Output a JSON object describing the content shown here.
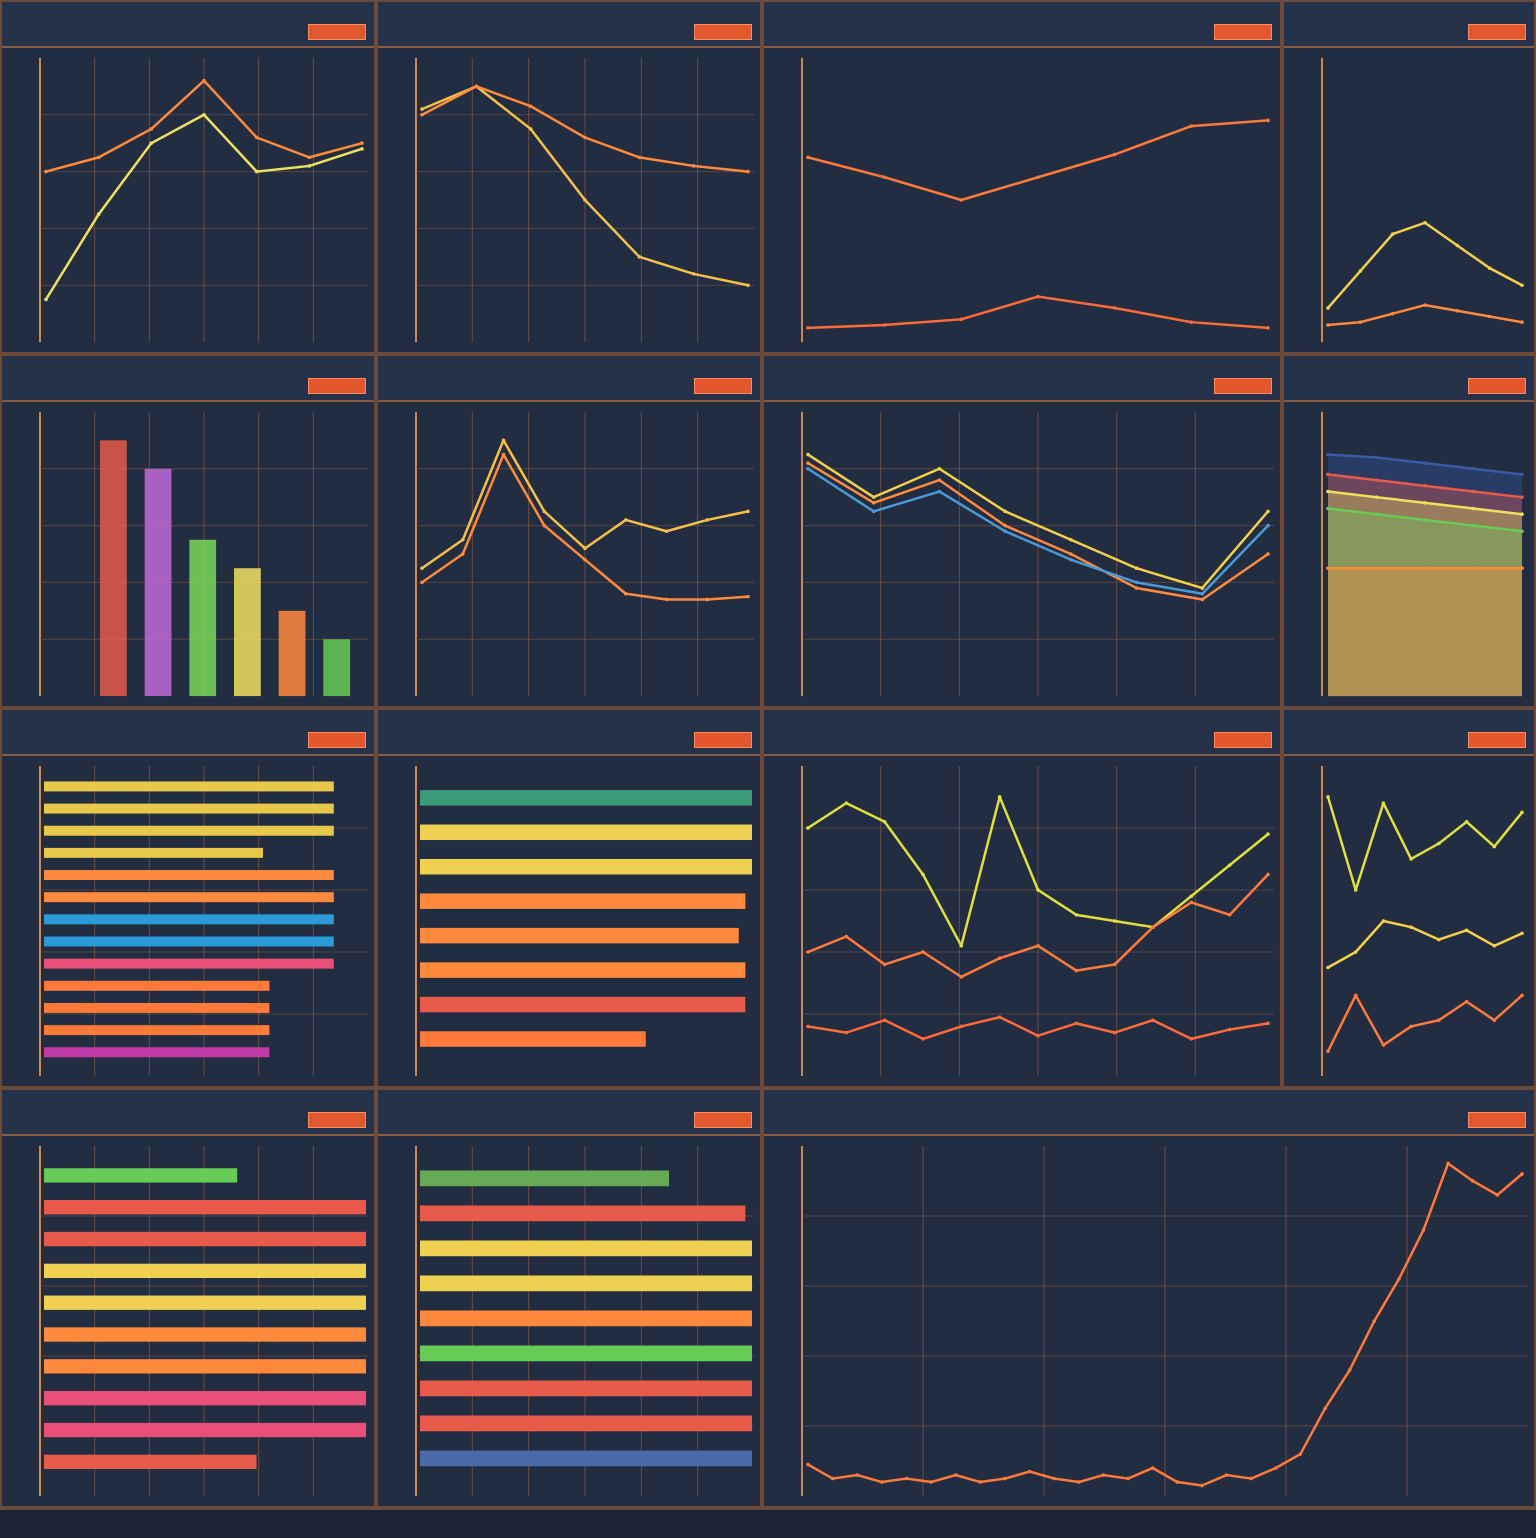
{
  "dashboard": {
    "background": "#1f2a3d",
    "panels": [
      {
        "id": "p1",
        "title": "",
        "subtitle": "",
        "button": "",
        "corner": "",
        "chart": {
          "type": "line",
          "grid": true,
          "x": [
            0,
            1,
            2,
            3,
            4,
            5,
            6
          ],
          "ylim": [
            0,
            10
          ],
          "series": [
            {
              "color": "#f0e060",
              "values": [
                1.5,
                4.5,
                7,
                8,
                6,
                6.2,
                6.8
              ]
            },
            {
              "color": "#ff8a3c",
              "values": [
                6,
                6.5,
                7.5,
                9.2,
                7.2,
                6.5,
                7
              ]
            }
          ]
        }
      },
      {
        "id": "p2",
        "title": "",
        "subtitle": "",
        "button": "",
        "corner": "",
        "chart": {
          "type": "line",
          "grid": true,
          "x": [
            0,
            1,
            2,
            3,
            4,
            5,
            6
          ],
          "ylim": [
            0,
            10
          ],
          "series": [
            {
              "color": "#f5c04a",
              "values": [
                8.2,
                9,
                7.5,
                5,
                3,
                2.4,
                2
              ]
            },
            {
              "color": "#ff8a3c",
              "values": [
                8,
                9,
                8.3,
                7.2,
                6.5,
                6.2,
                6
              ]
            }
          ]
        }
      },
      {
        "id": "p3",
        "title": "",
        "subtitle": "",
        "button": "",
        "corner": "",
        "chart": {
          "type": "line",
          "grid": false,
          "x": [
            0,
            1,
            2,
            3,
            4,
            5,
            6
          ],
          "ylim": [
            0,
            10
          ],
          "series": [
            {
              "color": "#ff7a3a",
              "values": [
                6.5,
                5.8,
                5,
                5.8,
                6.6,
                7.6,
                7.8
              ]
            },
            {
              "color": "#ff6a3a",
              "values": [
                0.5,
                0.6,
                0.8,
                1.6,
                1.2,
                0.7,
                0.5
              ]
            }
          ]
        }
      },
      {
        "id": "p4",
        "title": "",
        "subtitle": "",
        "button": "",
        "corner": "",
        "chart": {
          "type": "line",
          "grid": false,
          "x": [
            0,
            1,
            2,
            3,
            4,
            5,
            6
          ],
          "ylim": [
            0,
            10
          ],
          "series": [
            {
              "color": "#f5d04a",
              "values": [
                1.2,
                2.5,
                3.8,
                4.2,
                3.4,
                2.6,
                2
              ]
            },
            {
              "color": "#ff8a3c",
              "values": [
                0.6,
                0.7,
                1,
                1.3,
                1.1,
                0.9,
                0.7
              ]
            }
          ]
        }
      },
      {
        "id": "p5",
        "title": "",
        "subtitle": "",
        "button": "",
        "corner": "",
        "chart": {
          "type": "bar",
          "grid": true,
          "categories": [
            "",
            "",
            "",
            "",
            "",
            ""
          ],
          "series": [
            {
              "color": "#e85a4a",
              "values": [
                9
              ]
            },
            {
              "color": "#c06ad8",
              "values": [
                8
              ]
            },
            {
              "color": "#7ad85a",
              "values": [
                5.5
              ]
            },
            {
              "color": "#f0e060",
              "values": [
                4.5
              ]
            },
            {
              "color": "#ff8a3c",
              "values": [
                3
              ]
            },
            {
              "color": "#66cc55",
              "values": [
                2
              ]
            }
          ]
        }
      },
      {
        "id": "p6",
        "title": "",
        "subtitle": "",
        "button": "",
        "corner": "",
        "chart": {
          "type": "line",
          "grid": true,
          "x": [
            0,
            1,
            2,
            3,
            4,
            5,
            6,
            7,
            8
          ],
          "ylim": [
            0,
            10
          ],
          "series": [
            {
              "color": "#f5c04a",
              "values": [
                4.5,
                5.5,
                9,
                6.5,
                5.2,
                6.2,
                5.8,
                6.2,
                6.5
              ]
            },
            {
              "color": "#ff8a3c",
              "values": [
                4,
                5,
                8.5,
                6,
                4.8,
                3.6,
                3.4,
                3.4,
                3.5
              ]
            }
          ]
        }
      },
      {
        "id": "p7",
        "title": "",
        "subtitle": "",
        "button": "",
        "corner": "",
        "chart": {
          "type": "line",
          "grid": true,
          "x": [
            0,
            1,
            2,
            3,
            4,
            5,
            6,
            7
          ],
          "ylim": [
            0,
            10
          ],
          "series": [
            {
              "color": "#f5d04a",
              "values": [
                8.5,
                7,
                8,
                6.5,
                5.5,
                4.5,
                3.8,
                6.5
              ]
            },
            {
              "color": "#ff8a3c",
              "values": [
                8.2,
                6.8,
                7.6,
                6,
                5,
                3.8,
                3.4,
                5
              ]
            },
            {
              "color": "#4a9ad8",
              "values": [
                8,
                6.5,
                7.2,
                5.8,
                4.8,
                4,
                3.6,
                6
              ]
            }
          ]
        }
      },
      {
        "id": "p8",
        "title": "",
        "subtitle": "",
        "button": "",
        "corner": "",
        "chart": {
          "type": "area",
          "grid": false,
          "x": [
            0,
            1,
            2,
            3,
            4
          ],
          "ylim": [
            0,
            10
          ],
          "series": [
            {
              "color": "#3a5aa8",
              "values": [
                8.5,
                8.4,
                8.2,
                8,
                7.8
              ]
            },
            {
              "color": "#e85a4a",
              "values": [
                7.8,
                7.6,
                7.4,
                7.2,
                7
              ]
            },
            {
              "color": "#f0e060",
              "values": [
                7.2,
                7,
                6.8,
                6.6,
                6.4
              ]
            },
            {
              "color": "#66cc55",
              "values": [
                6.6,
                6.4,
                6.2,
                6,
                5.8
              ]
            },
            {
              "color": "#ff8a3c",
              "values": [
                4.5,
                4.5,
                4.5,
                4.5,
                4.5
              ]
            }
          ]
        }
      },
      {
        "id": "p9",
        "title": "",
        "subtitle": "",
        "button": "",
        "corner": "",
        "chart": {
          "type": "hbar",
          "grid": true,
          "xlim": [
            0,
            10
          ],
          "series": [
            {
              "color": "#e8c84a",
              "values": [
                9,
                9,
                9,
                6.8
              ]
            },
            {
              "color": "#ff8a3c",
              "values": [
                9,
                9
              ]
            },
            {
              "color": "#2a9ad8",
              "values": [
                9,
                9
              ]
            },
            {
              "color": "#e8507a",
              "values": [
                9
              ]
            },
            {
              "color": "#ff7a3a",
              "values": [
                7,
                7,
                7
              ]
            },
            {
              "color": "#c03aa8",
              "values": [
                7
              ]
            }
          ]
        }
      },
      {
        "id": "p10",
        "title": "",
        "subtitle": "",
        "button": "",
        "corner": "",
        "chart": {
          "type": "hbar",
          "grid": false,
          "xlim": [
            0,
            10
          ],
          "series": [
            {
              "color": "#3a9a7a",
              "values": [
                10
              ]
            },
            {
              "color": "#f0d050",
              "values": [
                10,
                10
              ]
            },
            {
              "color": "#ff8a3c",
              "values": [
                9.8,
                9.6,
                9.8
              ]
            },
            {
              "color": "#e85a4a",
              "values": [
                9.8
              ]
            },
            {
              "color": "#ff7a3a",
              "values": [
                6.8
              ]
            }
          ]
        }
      },
      {
        "id": "p11",
        "title": "",
        "subtitle": "",
        "button": "",
        "corner": "",
        "chart": {
          "type": "line",
          "grid": true,
          "x": [
            0,
            1,
            2,
            3,
            4,
            5,
            6,
            7,
            8,
            9,
            10,
            11,
            12
          ],
          "ylim": [
            0,
            10
          ],
          "series": [
            {
              "color": "#e0e040",
              "values": [
                8,
                8.8,
                8.2,
                6.5,
                4.2,
                9,
                6,
                5.2,
                5,
                4.8,
                5.8,
                6.8,
                7.8
              ]
            },
            {
              "color": "#ff7a3a",
              "values": [
                4,
                4.5,
                3.6,
                4,
                3.2,
                3.8,
                4.2,
                3.4,
                3.6,
                4.8,
                5.6,
                5.2,
                6.5
              ]
            },
            {
              "color": "#ff6a3a",
              "values": [
                1.6,
                1.4,
                1.8,
                1.2,
                1.6,
                1.9,
                1.3,
                1.7,
                1.4,
                1.8,
                1.2,
                1.5,
                1.7
              ]
            }
          ]
        }
      },
      {
        "id": "p12",
        "title": "",
        "subtitle": "",
        "button": "",
        "corner": "",
        "chart": {
          "type": "line",
          "grid": false,
          "x": [
            0,
            1,
            2,
            3,
            4,
            5,
            6,
            7
          ],
          "ylim": [
            0,
            10
          ],
          "series": [
            {
              "color": "#e0e040",
              "values": [
                9,
                6,
                8.8,
                7,
                7.5,
                8.2,
                7.4,
                8.5
              ]
            },
            {
              "color": "#f5d04a",
              "values": [
                3.5,
                4,
                5,
                4.8,
                4.4,
                4.7,
                4.2,
                4.6
              ]
            },
            {
              "color": "#ff7a3a",
              "values": [
                0.8,
                2.6,
                1,
                1.6,
                1.8,
                2.4,
                1.8,
                2.6
              ]
            }
          ]
        }
      },
      {
        "id": "p13",
        "title": "",
        "subtitle": "",
        "button": "",
        "corner": "",
        "chart": {
          "type": "hbar",
          "grid": true,
          "xlim": [
            0,
            10
          ],
          "series": [
            {
              "color": "#66cc55",
              "values": [
                6
              ]
            },
            {
              "color": "#e85a4a",
              "values": [
                10,
                10
              ]
            },
            {
              "color": "#f0d050",
              "values": [
                10,
                10
              ]
            },
            {
              "color": "#ff8a3c",
              "values": [
                10,
                10
              ]
            },
            {
              "color": "#e8507a",
              "values": [
                10,
                10
              ]
            },
            {
              "color": "#e85a4a",
              "values": [
                6.6
              ]
            }
          ]
        }
      },
      {
        "id": "p14",
        "title": "",
        "subtitle": "",
        "button": "",
        "corner": "",
        "chart": {
          "type": "hbar",
          "grid": true,
          "xlim": [
            0,
            10
          ],
          "series": [
            {
              "color": "#66aa55",
              "values": [
                7.5
              ]
            },
            {
              "color": "#e85a4a",
              "values": [
                9.8
              ]
            },
            {
              "color": "#f0d050",
              "values": [
                10,
                10
              ]
            },
            {
              "color": "#ff8a3c",
              "values": [
                10
              ]
            },
            {
              "color": "#66cc55",
              "values": [
                10
              ]
            },
            {
              "color": "#e85a4a",
              "values": [
                10,
                10
              ]
            },
            {
              "color": "#4a6aa8",
              "values": [
                10
              ]
            }
          ]
        }
      },
      {
        "id": "p15",
        "title": "",
        "subtitle": "",
        "button": "",
        "corner": "",
        "chart": {
          "type": "line",
          "grid": true,
          "x": [
            0,
            1,
            2,
            3,
            4,
            5,
            6,
            7,
            8,
            9,
            10,
            11,
            12,
            13,
            14,
            15,
            16,
            17,
            18,
            19,
            20,
            21,
            22,
            23,
            24,
            25,
            26,
            27,
            28,
            29
          ],
          "ylim": [
            0,
            10
          ],
          "series": [
            {
              "color": "#ff7a3a",
              "values": [
                0.9,
                0.5,
                0.6,
                0.4,
                0.5,
                0.4,
                0.6,
                0.4,
                0.5,
                0.7,
                0.5,
                0.4,
                0.6,
                0.5,
                0.8,
                0.4,
                0.3,
                0.6,
                0.5,
                0.8,
                1.2,
                2.5,
                3.6,
                5,
                6.2,
                7.6,
                9.5,
                9,
                8.6,
                9.2
              ]
            }
          ]
        }
      },
      {
        "id": "p16",
        "title": "",
        "subtitle": "",
        "button": "",
        "corner": "",
        "chart": {
          "type": "line",
          "grid": false,
          "x": [
            0,
            1
          ],
          "ylim": [
            0,
            10
          ],
          "series": []
        }
      }
    ],
    "footer": [
      "",
      "",
      "",
      "",
      ""
    ]
  }
}
